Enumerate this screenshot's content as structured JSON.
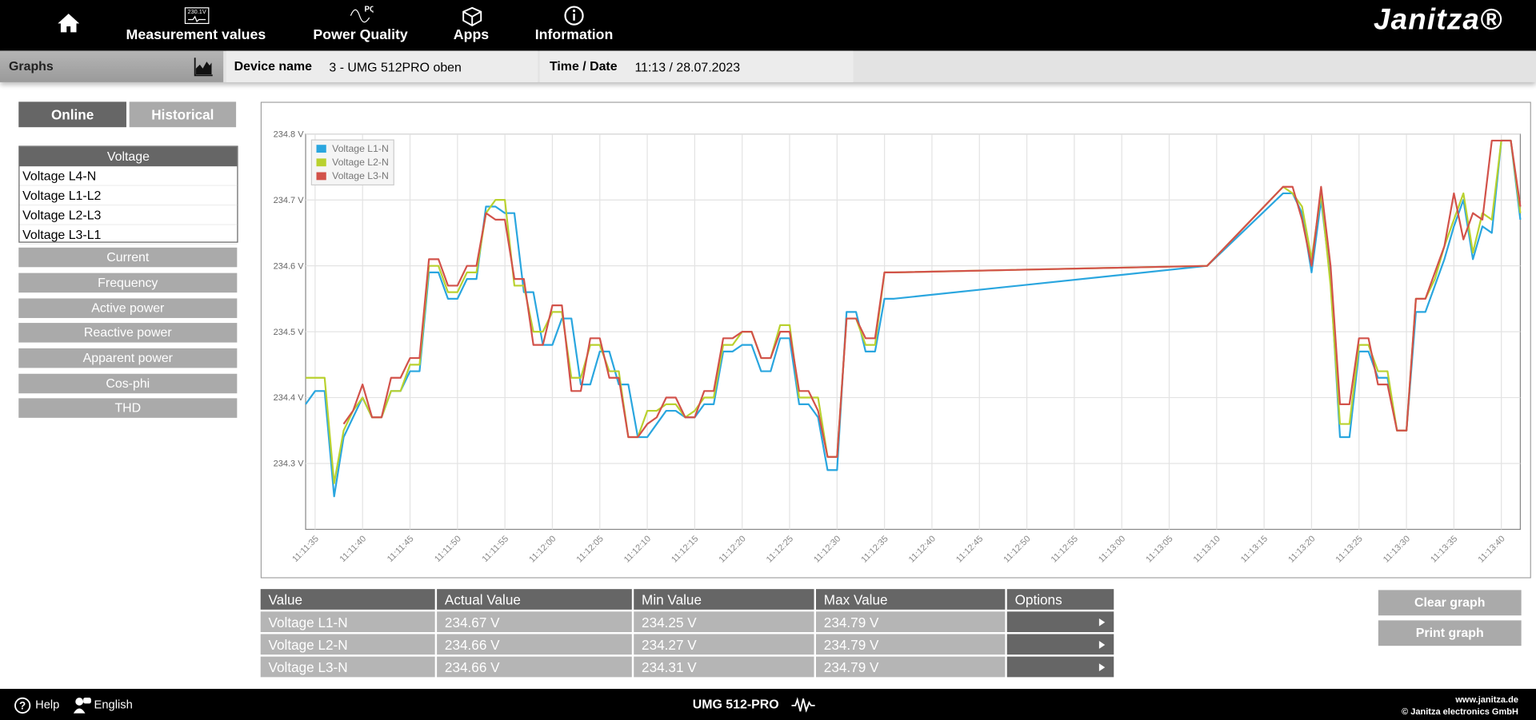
{
  "header": {
    "nav": [
      "Measurement values",
      "Power Quality",
      "Apps",
      "Information"
    ],
    "measurement_icon_text": "230.1V",
    "pq_icon_text": "PQ",
    "logo": "Janitza®"
  },
  "toolbar": {
    "section": "Graphs",
    "device_label": "Device name",
    "device": "3 - UMG 512PRO oben",
    "time_label": "Time / Date",
    "time": "11:13 / 28.07.2023"
  },
  "sidebar": {
    "tabs": [
      "Online",
      "Historical"
    ],
    "group": "Voltage",
    "items": [
      "Voltage L4-N",
      "Voltage L1-L2",
      "Voltage L2-L3",
      "Voltage L3-L1"
    ],
    "menu": [
      "Current",
      "Frequency",
      "Active power",
      "Reactive power",
      "Apparent power",
      "Cos-phi",
      "THD"
    ]
  },
  "chart_data": {
    "type": "line",
    "grid": true,
    "legend": "top-left",
    "x": [
      "11:11:34",
      "11:11:35",
      "11:11:36",
      "11:11:37",
      "11:11:38",
      "11:11:39",
      "11:11:40",
      "11:11:41",
      "11:11:42",
      "11:11:43",
      "11:11:44",
      "11:11:45",
      "11:11:46",
      "11:11:47",
      "11:11:48",
      "11:11:49",
      "11:11:50",
      "11:11:51",
      "11:11:52",
      "11:11:53",
      "11:11:54",
      "11:11:55",
      "11:11:56",
      "11:11:57",
      "11:11:58",
      "11:11:59",
      "11:12:00",
      "11:12:01",
      "11:12:02",
      "11:12:03",
      "11:12:04",
      "11:12:05",
      "11:12:06",
      "11:12:07",
      "11:12:08",
      "11:12:09",
      "11:12:10",
      "11:12:11",
      "11:12:12",
      "11:12:13",
      "11:12:14",
      "11:12:15",
      "11:12:16",
      "11:12:17",
      "11:12:18",
      "11:12:19",
      "11:12:20",
      "11:12:21",
      "11:12:22",
      "11:12:23",
      "11:12:24",
      "11:12:25",
      "11:12:26",
      "11:12:27",
      "11:12:28",
      "11:12:29",
      "11:12:30",
      "11:12:31",
      "11:12:32",
      "11:12:33",
      "11:12:34",
      "11:12:35",
      "11:12:36",
      "11:13:09",
      "11:13:17",
      "11:13:18",
      "11:13:19",
      "11:13:20",
      "11:13:21",
      "11:13:22",
      "11:13:23",
      "11:13:24",
      "11:13:25",
      "11:13:26",
      "11:13:27",
      "11:13:28",
      "11:13:29",
      "11:13:30",
      "11:13:31",
      "11:13:32",
      "11:13:33",
      "11:13:34",
      "11:13:35",
      "11:13:36",
      "11:13:37",
      "11:13:38",
      "11:13:39",
      "11:13:40",
      "11:13:41",
      "11:13:42"
    ],
    "series": [
      {
        "name": "Voltage L1-N",
        "color": "#2aa6df",
        "values": [
          234.39,
          234.41,
          234.41,
          234.25,
          234.34,
          234.37,
          234.4,
          234.37,
          234.37,
          234.41,
          234.41,
          234.44,
          234.44,
          234.59,
          234.59,
          234.55,
          234.55,
          234.58,
          234.58,
          234.69,
          234.69,
          234.68,
          234.68,
          234.56,
          234.56,
          234.48,
          234.48,
          234.52,
          234.52,
          234.42,
          234.42,
          234.47,
          234.47,
          234.42,
          234.42,
          234.34,
          234.34,
          234.36,
          234.38,
          234.38,
          234.37,
          234.37,
          234.39,
          234.39,
          234.47,
          234.47,
          234.48,
          234.48,
          234.44,
          234.44,
          234.49,
          234.49,
          234.39,
          234.39,
          234.37,
          234.29,
          234.29,
          234.53,
          234.53,
          234.47,
          234.47,
          234.55,
          234.55,
          234.6,
          234.71,
          234.71,
          234.68,
          234.59,
          234.7,
          234.58,
          234.34,
          234.34,
          234.47,
          234.47,
          234.43,
          234.43,
          234.35,
          234.35,
          234.53,
          234.53,
          234.57,
          234.61,
          234.66,
          234.7,
          234.61,
          234.66,
          234.65,
          234.79,
          234.79,
          234.67
        ]
      },
      {
        "name": "Voltage L2-N",
        "color": "#b9d12f",
        "values": [
          234.43,
          234.43,
          234.43,
          234.27,
          234.35,
          234.38,
          234.4,
          234.37,
          234.37,
          234.41,
          234.41,
          234.45,
          234.45,
          234.6,
          234.6,
          234.56,
          234.56,
          234.59,
          234.59,
          234.68,
          234.7,
          234.7,
          234.57,
          234.57,
          234.5,
          234.5,
          234.53,
          234.53,
          234.43,
          234.43,
          234.48,
          234.48,
          234.44,
          234.44,
          234.34,
          234.34,
          234.38,
          234.38,
          234.39,
          234.39,
          234.37,
          234.38,
          234.4,
          234.4,
          234.48,
          234.48,
          234.5,
          234.5,
          234.46,
          234.46,
          234.51,
          234.51,
          234.4,
          234.4,
          234.4,
          234.31,
          234.31,
          234.52,
          234.52,
          234.48,
          234.48,
          234.59,
          234.59,
          234.6,
          234.72,
          234.71,
          234.69,
          234.61,
          234.71,
          234.57,
          234.36,
          234.36,
          234.48,
          234.48,
          234.44,
          234.44,
          234.35,
          234.35,
          234.55,
          234.55,
          234.58,
          234.63,
          234.67,
          234.71,
          234.62,
          234.68,
          234.67,
          234.79,
          234.79,
          234.68
        ]
      },
      {
        "name": "Voltage L3-N",
        "color": "#d2524a",
        "values": [
          null,
          null,
          null,
          null,
          234.36,
          234.38,
          234.42,
          234.37,
          234.37,
          234.43,
          234.43,
          234.46,
          234.46,
          234.61,
          234.61,
          234.57,
          234.57,
          234.6,
          234.6,
          234.68,
          234.67,
          234.67,
          234.58,
          234.58,
          234.48,
          234.48,
          234.54,
          234.54,
          234.41,
          234.41,
          234.49,
          234.49,
          234.43,
          234.43,
          234.34,
          234.34,
          234.36,
          234.37,
          234.4,
          234.4,
          234.37,
          234.37,
          234.41,
          234.41,
          234.49,
          234.49,
          234.5,
          234.5,
          234.46,
          234.46,
          234.5,
          234.5,
          234.41,
          234.41,
          234.38,
          234.31,
          234.31,
          234.52,
          234.52,
          234.49,
          234.49,
          234.59,
          234.59,
          234.6,
          234.72,
          234.72,
          234.67,
          234.6,
          234.72,
          234.6,
          234.39,
          234.39,
          234.49,
          234.49,
          234.42,
          234.42,
          234.35,
          234.35,
          234.55,
          234.55,
          234.59,
          234.63,
          234.71,
          234.64,
          234.68,
          234.67,
          234.79,
          234.79,
          234.79,
          234.69
        ]
      }
    ],
    "xlim": [
      "11:11:34",
      "11:13:42"
    ],
    "xticks": [
      "11:11:35",
      "11:11:40",
      "11:11:45",
      "11:11:50",
      "11:11:55",
      "11:12:00",
      "11:12:05",
      "11:12:10",
      "11:12:15",
      "11:12:20",
      "11:12:25",
      "11:12:30",
      "11:12:35",
      "11:12:40",
      "11:12:45",
      "11:12:50",
      "11:12:55",
      "11:13:00",
      "11:13:05",
      "11:13:10",
      "11:13:15",
      "11:13:20",
      "11:13:25",
      "11:13:30",
      "11:13:35",
      "11:13:40"
    ],
    "ylim": [
      234.2,
      234.8
    ],
    "yticks": [
      {
        "value": 234.3,
        "label": "234.3 V"
      },
      {
        "value": 234.4,
        "label": "234.4 V"
      },
      {
        "value": 234.5,
        "label": "234.5 V"
      },
      {
        "value": 234.6,
        "label": "234.6 V"
      },
      {
        "value": 234.7,
        "label": "234.7 V"
      },
      {
        "value": 234.8,
        "label": "234.8 V"
      }
    ]
  },
  "table": {
    "columns": [
      "Value",
      "Actual Value",
      "Min Value",
      "Max Value",
      "Options"
    ],
    "rows": [
      [
        "Voltage L1-N",
        "234.67 V",
        "234.25 V",
        "234.79 V"
      ],
      [
        "Voltage L2-N",
        "234.66 V",
        "234.27 V",
        "234.79 V"
      ],
      [
        "Voltage L3-N",
        "234.66 V",
        "234.31 V",
        "234.79 V"
      ]
    ]
  },
  "actions": [
    "Clear graph",
    "Print graph"
  ],
  "footer": {
    "help": "Help",
    "language": "English",
    "device": "UMG 512-PRO",
    "website": "www.janitza.de",
    "copyright": "© Janitza electronics GmbH"
  }
}
